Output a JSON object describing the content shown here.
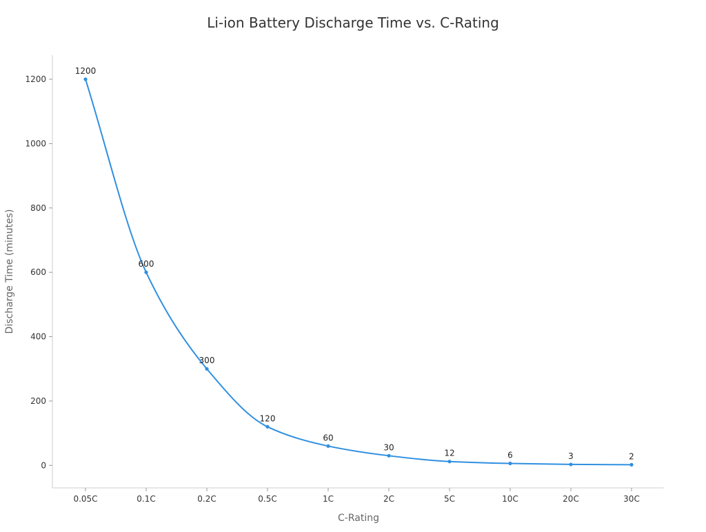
{
  "chart_data": {
    "type": "line",
    "title": "Li-ion Battery Discharge Time vs. C-Rating",
    "xlabel": "C-Rating",
    "ylabel": "Discharge Time (minutes)",
    "categories": [
      "0.05C",
      "0.1C",
      "0.2C",
      "0.5C",
      "1C",
      "2C",
      "5C",
      "10C",
      "20C",
      "30C"
    ],
    "values": [
      1200,
      600,
      300,
      120,
      60,
      30,
      12,
      6,
      3,
      2
    ],
    "yticks": [
      0,
      200,
      400,
      600,
      800,
      1000,
      1200
    ],
    "ylim": [
      -70,
      1275
    ],
    "line_smooth": true,
    "show_data_labels": true,
    "grid": false,
    "colors": {
      "series": "#2f8fe0",
      "axis": "#cccccc"
    }
  }
}
